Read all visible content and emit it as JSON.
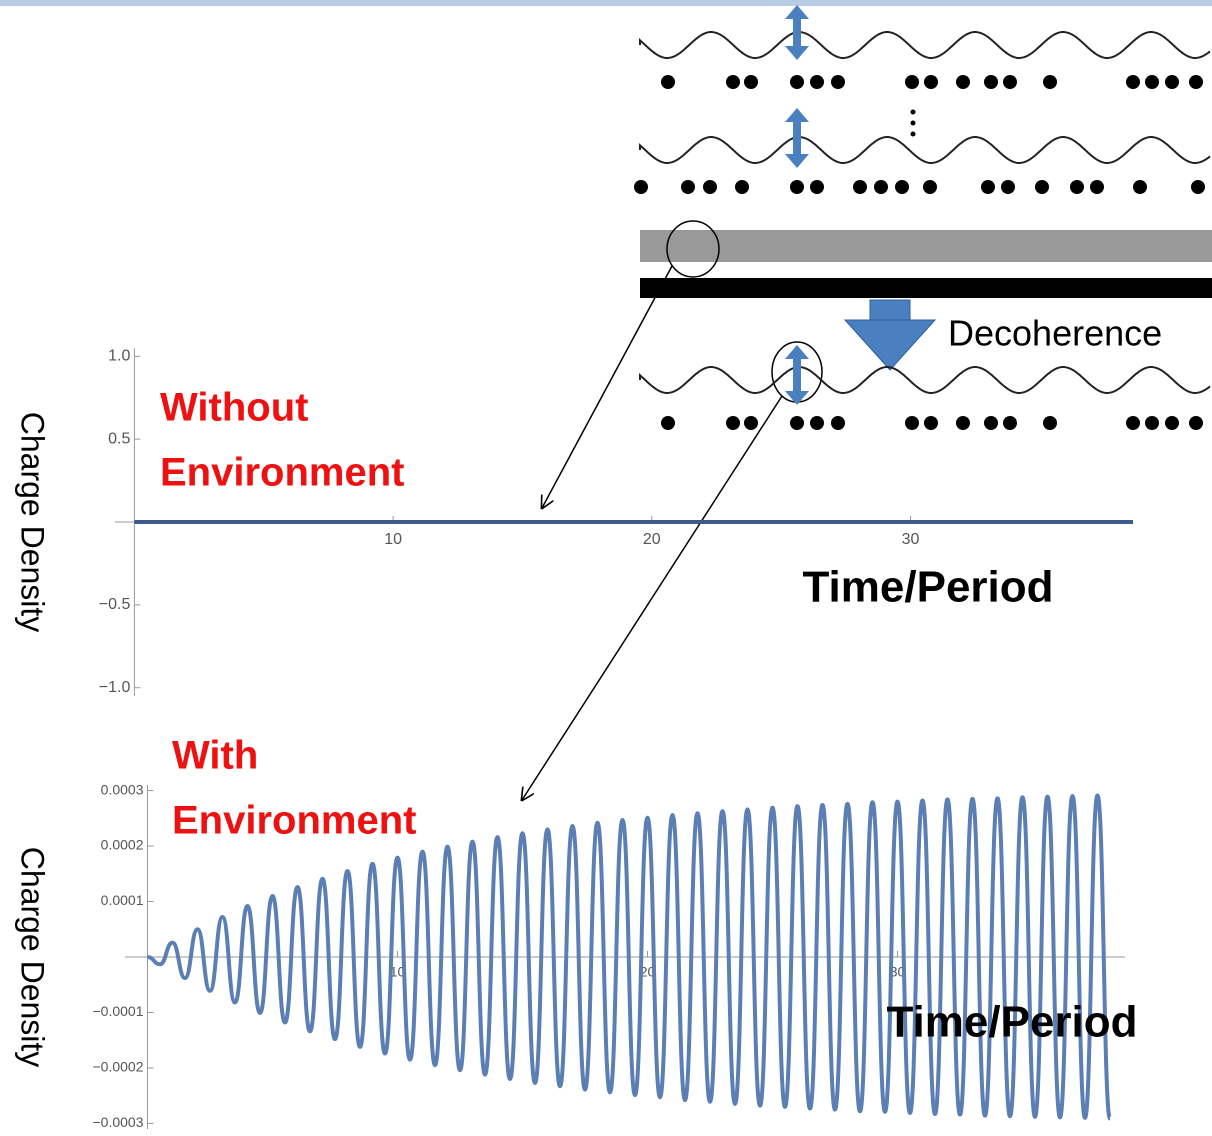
{
  "chart_data": [
    {
      "type": "line",
      "y_label": "Charge Density",
      "x_label": "Time/Period",
      "annotation": [
        "Without",
        "Environment"
      ],
      "xlim": [
        -0.75,
        38.6
      ],
      "ylim": [
        -1.05,
        1.05
      ],
      "xticks": [
        10,
        20,
        30
      ],
      "yticks": [
        {
          "value": -1.0,
          "label": "−1.0"
        },
        {
          "value": -0.5,
          "label": "−0.5"
        },
        0.5,
        {
          "value": 1.0,
          "label": "1.0"
        }
      ],
      "x": [
        0,
        38.6
      ],
      "values": [
        0,
        0
      ],
      "color": "#3d5a8c"
    },
    {
      "type": "line",
      "y_label": "Charge Density",
      "x_label": "Time/Period",
      "annotation": [
        "With",
        "Environment"
      ],
      "xlim": [
        -0.9,
        39.1
      ],
      "ylim": [
        -0.00031,
        0.00031
      ],
      "xticks": [
        10,
        20,
        30
      ],
      "yticks": [
        {
          "value": -0.0003,
          "label": "−0.0003"
        },
        {
          "value": -0.0002,
          "label": "−0.0002"
        },
        {
          "value": -0.0001,
          "label": "−0.0001"
        },
        0.0001,
        0.0002,
        0.0003
      ],
      "x": [
        0,
        0.5,
        1,
        1.5,
        2,
        2.5,
        3,
        3.5,
        4,
        4.5,
        5,
        5.5,
        6,
        6.5,
        7,
        7.5,
        8,
        8.5,
        9,
        9.5,
        10,
        10.5,
        11,
        11.5,
        12,
        12.5,
        13,
        13.5,
        14,
        14.5,
        15,
        15.5,
        16,
        16.5,
        17,
        17.5,
        18,
        18.5,
        19,
        19.5,
        20,
        20.5,
        21,
        21.5,
        22,
        22.5,
        23,
        23.5,
        24,
        24.5,
        25,
        25.5,
        26,
        26.5,
        27,
        27.5,
        28,
        28.5,
        29,
        29.5,
        30,
        30.5,
        31,
        31.5,
        32,
        32.5,
        33,
        33.5,
        34,
        34.5,
        35,
        35.5,
        36,
        36.5,
        37,
        37.5,
        38,
        38.5
      ],
      "values": [
        0,
        -1.3e-05,
        2.6e-05,
        -3.8e-05,
        5e-05,
        -6.1e-05,
        7.2e-05,
        -8.2e-05,
        9.2e-05,
        -0.000101,
        0.00011,
        -0.000118,
        0.000126,
        -0.000134,
        0.000141,
        -0.000148,
        0.000155,
        -0.000162,
        0.000168,
        -0.000174,
        0.000179,
        -0.000185,
        0.00019,
        -0.000195,
        0.000199,
        -0.000204,
        0.000208,
        -0.000212,
        0.000216,
        -0.00022,
        0.000223,
        -0.000227,
        0.00023,
        -0.000233,
        0.000236,
        -0.000239,
        0.000242,
        -0.000244,
        0.000247,
        -0.000249,
        0.000251,
        -0.000253,
        0.000256,
        -0.000258,
        0.000259,
        -0.000261,
        0.000263,
        -0.000265,
        0.000266,
        -0.000268,
        0.000269,
        -0.00027,
        0.000272,
        -0.000273,
        0.000274,
        -0.000275,
        0.000276,
        -0.000278,
        0.000279,
        -0.000279,
        0.00028,
        -0.000281,
        0.000282,
        -0.000283,
        0.000284,
        -0.000284,
        0.000285,
        -0.000286,
        0.000286,
        -0.000287,
        0.000288,
        -0.000288,
        0.000289,
        -0.000289,
        0.00029,
        -0.00029,
        0.000291,
        -0.000291
      ],
      "color": "#5b7fb5"
    }
  ],
  "diagram": {
    "label": "Decoherence"
  }
}
